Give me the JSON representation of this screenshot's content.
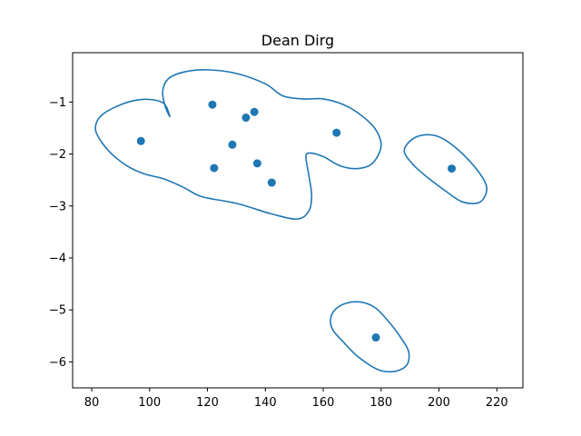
{
  "chart_data": {
    "type": "scatter",
    "title": "Dean Dirg",
    "xlabel": "",
    "ylabel": "",
    "xlim": [
      73.4,
      229.0
    ],
    "ylim": [
      -6.5,
      -0.05
    ],
    "xticks": [
      80,
      100,
      120,
      140,
      160,
      180,
      200,
      220
    ],
    "xtick_labels": [
      "80",
      "100",
      "120",
      "140",
      "160",
      "180",
      "200",
      "220"
    ],
    "yticks": [
      -1,
      -2,
      -3,
      -4,
      -5,
      -6
    ],
    "ytick_labels": [
      "−1",
      "−2",
      "−3",
      "−4",
      "−5",
      "−6"
    ],
    "grid": false,
    "color": "#1f77b4",
    "points": [
      {
        "x": 97.0,
        "y": -1.75
      },
      {
        "x": 121.7,
        "y": -1.05
      },
      {
        "x": 122.3,
        "y": -2.27
      },
      {
        "x": 128.6,
        "y": -1.82
      },
      {
        "x": 133.3,
        "y": -1.3
      },
      {
        "x": 136.2,
        "y": -1.19
      },
      {
        "x": 137.2,
        "y": -2.18
      },
      {
        "x": 142.2,
        "y": -2.55
      },
      {
        "x": 164.6,
        "y": -1.59
      },
      {
        "x": 204.4,
        "y": -2.28
      },
      {
        "x": 178.2,
        "y": -5.53
      }
    ],
    "contours": [
      {
        "name": "cluster-boundary-main",
        "closed": true,
        "points": [
          [
            81.5,
            -1.42
          ],
          [
            83.5,
            -1.25
          ],
          [
            88.0,
            -1.1
          ],
          [
            94.0,
            -0.98
          ],
          [
            100.0,
            -0.95
          ],
          [
            105.0,
            -1.03
          ],
          [
            107.0,
            -1.28
          ],
          [
            105.5,
            -1.1
          ],
          [
            104.5,
            -0.8
          ],
          [
            106.5,
            -0.55
          ],
          [
            112.0,
            -0.42
          ],
          [
            120.0,
            -0.38
          ],
          [
            130.0,
            -0.45
          ],
          [
            140.0,
            -0.65
          ],
          [
            146.0,
            -0.88
          ],
          [
            153.0,
            -0.94
          ],
          [
            160.0,
            -0.94
          ],
          [
            167.0,
            -1.05
          ],
          [
            173.0,
            -1.25
          ],
          [
            178.0,
            -1.52
          ],
          [
            180.0,
            -1.85
          ],
          [
            177.0,
            -2.18
          ],
          [
            172.0,
            -2.28
          ],
          [
            166.0,
            -2.23
          ],
          [
            160.0,
            -2.05
          ],
          [
            155.5,
            -1.98
          ],
          [
            154.0,
            -2.05
          ],
          [
            155.0,
            -2.4
          ],
          [
            156.0,
            -2.8
          ],
          [
            155.0,
            -3.1
          ],
          [
            151.0,
            -3.25
          ],
          [
            142.0,
            -3.15
          ],
          [
            130.0,
            -2.95
          ],
          [
            118.0,
            -2.82
          ],
          [
            112.0,
            -2.65
          ],
          [
            105.0,
            -2.48
          ],
          [
            98.0,
            -2.38
          ],
          [
            92.0,
            -2.22
          ],
          [
            86.0,
            -1.95
          ],
          [
            81.8,
            -1.62
          ]
        ]
      },
      {
        "name": "cluster-boundary-right",
        "closed": true,
        "points": [
          [
            188.0,
            -1.95
          ],
          [
            190.0,
            -1.75
          ],
          [
            194.0,
            -1.64
          ],
          [
            199.0,
            -1.65
          ],
          [
            204.0,
            -1.8
          ],
          [
            210.0,
            -2.1
          ],
          [
            215.0,
            -2.45
          ],
          [
            216.5,
            -2.7
          ],
          [
            214.0,
            -2.93
          ],
          [
            208.0,
            -2.92
          ],
          [
            202.0,
            -2.7
          ],
          [
            196.0,
            -2.45
          ],
          [
            191.0,
            -2.2
          ]
        ]
      },
      {
        "name": "cluster-boundary-bottom",
        "closed": true,
        "points": [
          [
            162.5,
            -5.2
          ],
          [
            164.0,
            -5.0
          ],
          [
            168.0,
            -4.87
          ],
          [
            173.0,
            -4.85
          ],
          [
            178.0,
            -4.96
          ],
          [
            183.0,
            -5.25
          ],
          [
            187.0,
            -5.55
          ],
          [
            189.5,
            -5.8
          ],
          [
            189.0,
            -6.05
          ],
          [
            185.0,
            -6.18
          ],
          [
            179.0,
            -6.15
          ],
          [
            172.0,
            -5.9
          ],
          [
            167.0,
            -5.62
          ],
          [
            163.5,
            -5.4
          ]
        ]
      }
    ]
  }
}
